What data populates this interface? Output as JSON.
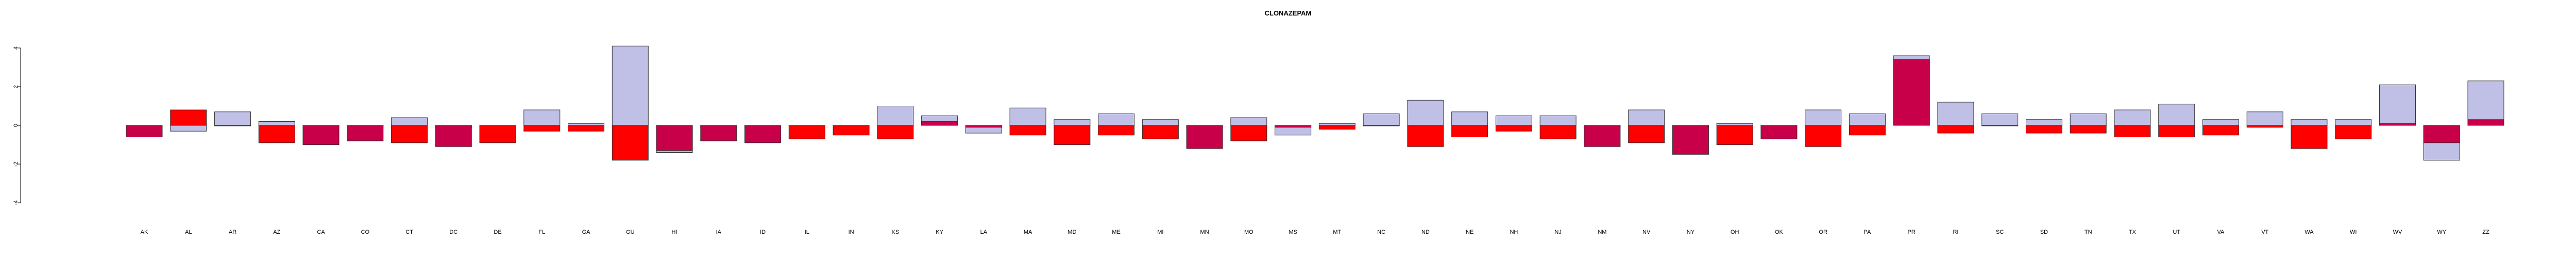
{
  "chart_data": {
    "type": "bar",
    "title": "CLONAZEPAM",
    "xlabel": "",
    "ylabel": "",
    "ylim": [
      -4,
      4
    ],
    "yticks": [
      -4,
      -2,
      0,
      2,
      4
    ],
    "grid": false,
    "categories": [
      "AK",
      "AL",
      "AR",
      "AZ",
      "CA",
      "CO",
      "CT",
      "DC",
      "DE",
      "FL",
      "GA",
      "GU",
      "HI",
      "IA",
      "ID",
      "IL",
      "IN",
      "KS",
      "KY",
      "LA",
      "MA",
      "MD",
      "ME",
      "MI",
      "MN",
      "MO",
      "MS",
      "MT",
      "NC",
      "ND",
      "NE",
      "NH",
      "NJ",
      "NM",
      "NV",
      "NY",
      "OH",
      "OK",
      "OR",
      "PA",
      "PR",
      "RI",
      "SC",
      "SD",
      "TN",
      "TX",
      "UT",
      "VA",
      "VT",
      "WA",
      "WI",
      "WV",
      "WY",
      "ZZ"
    ],
    "series": [
      {
        "key": "back",
        "values": [
          -0.1,
          -0.3,
          0.7,
          0.2,
          -0.1,
          -0.1,
          0.4,
          -0.1,
          0.0,
          0.8,
          0.1,
          4.1,
          -1.4,
          -0.1,
          -0.1,
          0.0,
          0.0,
          1.0,
          0.5,
          -0.4,
          0.9,
          0.3,
          0.6,
          0.3,
          -0.1,
          0.4,
          -0.5,
          0.1,
          0.6,
          1.3,
          0.7,
          0.5,
          0.5,
          -0.1,
          0.8,
          -0.1,
          0.1,
          -0.1,
          0.8,
          0.6,
          3.6,
          1.2,
          0.6,
          0.3,
          0.6,
          0.8,
          1.1,
          0.3,
          0.7,
          0.3,
          0.3,
          2.1,
          -1.8,
          2.3
        ]
      },
      {
        "key": "front",
        "values": [
          -0.6,
          0.8,
          0.0,
          -0.9,
          -1.0,
          -0.8,
          -0.9,
          -1.1,
          -0.9,
          -0.3,
          -0.3,
          -1.8,
          -1.3,
          -0.8,
          -0.9,
          -0.7,
          -0.5,
          -0.7,
          0.2,
          -0.1,
          -0.5,
          -1.0,
          -0.5,
          -0.7,
          -1.2,
          -0.8,
          -0.1,
          -0.2,
          0.0,
          -1.1,
          -0.6,
          -0.3,
          -0.7,
          -1.1,
          -0.9,
          -1.5,
          -1.0,
          -0.7,
          -1.1,
          -0.5,
          3.4,
          -0.4,
          0.0,
          -0.4,
          -0.4,
          -0.6,
          -0.6,
          -0.5,
          -0.1,
          -1.2,
          -0.7,
          0.1,
          -0.9,
          0.3
        ]
      }
    ],
    "colors": {
      "back_fill": "#c0c0e6",
      "front_fill": "#ff0000",
      "dark_fill": "#c8004a",
      "outline": "#333333",
      "axis": "#000000"
    }
  }
}
